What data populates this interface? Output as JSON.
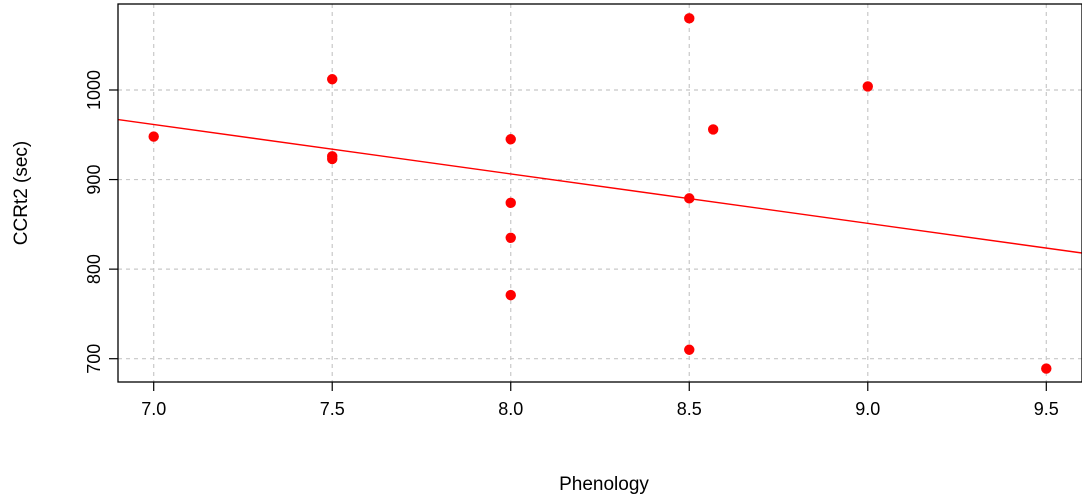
{
  "chart_data": {
    "type": "scatter",
    "title": "",
    "xlabel": "Phenology",
    "ylabel": "CCRt2 (sec)",
    "xlim": [
      6.9,
      9.6
    ],
    "ylim": [
      674,
      1096
    ],
    "grid": true,
    "x_ticks": [
      7.0,
      7.5,
      8.0,
      8.5,
      9.0,
      9.5
    ],
    "x_tick_labels": [
      "7.0",
      "7.5",
      "8.0",
      "8.5",
      "9.0",
      "9.5"
    ],
    "y_ticks": [
      700,
      800,
      900,
      1000
    ],
    "y_tick_labels": [
      "700",
      "800",
      "900",
      "1000"
    ],
    "point_color": "#ff0000",
    "line_color": "#ff0000",
    "points": [
      {
        "x": 7.0,
        "y": 948
      },
      {
        "x": 7.5,
        "y": 1012
      },
      {
        "x": 7.5,
        "y": 926
      },
      {
        "x": 7.5,
        "y": 923
      },
      {
        "x": 8.0,
        "y": 945
      },
      {
        "x": 8.0,
        "y": 874
      },
      {
        "x": 8.0,
        "y": 835
      },
      {
        "x": 8.0,
        "y": 771
      },
      {
        "x": 8.5,
        "y": 1080
      },
      {
        "x": 8.5,
        "y": 879
      },
      {
        "x": 8.5,
        "y": 710
      },
      {
        "x": 8.567,
        "y": 956
      },
      {
        "x": 9.0,
        "y": 1004
      },
      {
        "x": 9.5,
        "y": 689
      }
    ],
    "regression_line": {
      "x": [
        6.9,
        9.6
      ],
      "y": [
        967,
        818
      ]
    }
  }
}
